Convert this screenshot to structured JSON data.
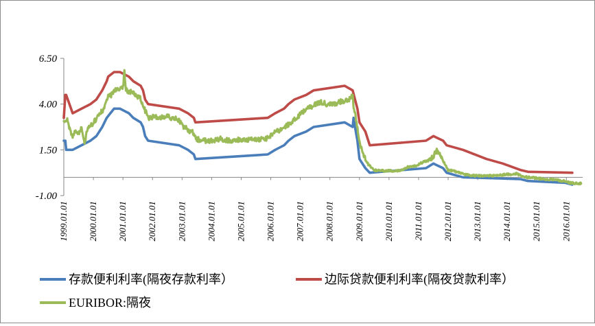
{
  "chart_data": {
    "type": "line",
    "title": "",
    "xlabel": "",
    "ylabel": "",
    "ylim": [
      -1.0,
      6.5
    ],
    "y_ticks": [
      "6.50",
      "4.00",
      "1.50",
      "-1.00"
    ],
    "x_ticks": [
      "1999.01.01",
      "2000.01.01",
      "2001.01.01",
      "2002.01.01",
      "2003.01.01",
      "2004.01.01",
      "2005.01.01",
      "2006.01.01",
      "2007.01.01",
      "2008.01.01",
      "2009.01.01",
      "2010.01.01",
      "2011.01.01",
      "2012.01.01",
      "2013.01.01",
      "2014.01.01",
      "2015.01.01",
      "2016.01.01"
    ],
    "grid": false,
    "legend_position": "bottom",
    "series": [
      {
        "name": "存款便利利率(隔夜存款利率）",
        "color": "#4a7ebb",
        "points": [
          [
            1999.0,
            2.0
          ],
          [
            1999.05,
            2.0
          ],
          [
            1999.08,
            1.5
          ],
          [
            1999.3,
            1.5
          ],
          [
            1999.9,
            2.0
          ],
          [
            2000.1,
            2.25
          ],
          [
            2000.2,
            2.5
          ],
          [
            2000.3,
            2.75
          ],
          [
            2000.45,
            3.25
          ],
          [
            2000.7,
            3.75
          ],
          [
            2000.9,
            3.75
          ],
          [
            2001.2,
            3.5
          ],
          [
            2001.35,
            3.25
          ],
          [
            2001.6,
            3.0
          ],
          [
            2001.68,
            2.75
          ],
          [
            2001.75,
            2.25
          ],
          [
            2001.85,
            2.0
          ],
          [
            2002.9,
            1.75
          ],
          [
            2003.2,
            1.5
          ],
          [
            2003.4,
            1.25
          ],
          [
            2003.45,
            1.0
          ],
          [
            2005.9,
            1.25
          ],
          [
            2006.15,
            1.5
          ],
          [
            2006.45,
            1.75
          ],
          [
            2006.6,
            2.0
          ],
          [
            2006.8,
            2.25
          ],
          [
            2007.2,
            2.5
          ],
          [
            2007.45,
            2.75
          ],
          [
            2008.5,
            3.0
          ],
          [
            2008.77,
            2.75
          ],
          [
            2008.8,
            3.25
          ],
          [
            2008.85,
            2.75
          ],
          [
            2008.93,
            2.0
          ],
          [
            2009.0,
            1.0
          ],
          [
            2009.2,
            0.5
          ],
          [
            2009.35,
            0.25
          ],
          [
            2011.25,
            0.5
          ],
          [
            2011.5,
            0.75
          ],
          [
            2011.83,
            0.5
          ],
          [
            2011.95,
            0.25
          ],
          [
            2012.5,
            0.0
          ],
          [
            2014.45,
            -0.1
          ],
          [
            2014.7,
            -0.2
          ],
          [
            2015.95,
            -0.3
          ],
          [
            2016.2,
            -0.4
          ]
        ]
      },
      {
        "name": "边际贷款便利利率(隔夜贷款利率）",
        "color": "#be4b48",
        "points": [
          [
            1999.0,
            3.25
          ],
          [
            1999.05,
            4.5
          ],
          [
            1999.08,
            4.5
          ],
          [
            1999.3,
            3.5
          ],
          [
            1999.9,
            4.0
          ],
          [
            2000.1,
            4.25
          ],
          [
            2000.2,
            4.5
          ],
          [
            2000.3,
            4.75
          ],
          [
            2000.45,
            5.25
          ],
          [
            2000.5,
            5.5
          ],
          [
            2000.7,
            5.75
          ],
          [
            2000.9,
            5.75
          ],
          [
            2001.2,
            5.5
          ],
          [
            2001.35,
            5.25
          ],
          [
            2001.6,
            5.0
          ],
          [
            2001.68,
            4.75
          ],
          [
            2001.75,
            4.25
          ],
          [
            2001.85,
            4.0
          ],
          [
            2002.9,
            3.75
          ],
          [
            2003.2,
            3.5
          ],
          [
            2003.4,
            3.25
          ],
          [
            2003.45,
            3.0
          ],
          [
            2005.9,
            3.25
          ],
          [
            2006.15,
            3.5
          ],
          [
            2006.45,
            3.75
          ],
          [
            2006.6,
            4.0
          ],
          [
            2006.8,
            4.25
          ],
          [
            2007.2,
            4.5
          ],
          [
            2007.45,
            4.75
          ],
          [
            2008.5,
            5.0
          ],
          [
            2008.77,
            4.75
          ],
          [
            2008.85,
            4.25
          ],
          [
            2008.93,
            3.75
          ],
          [
            2009.0,
            3.0
          ],
          [
            2009.2,
            2.5
          ],
          [
            2009.35,
            1.75
          ],
          [
            2011.25,
            2.0
          ],
          [
            2011.5,
            2.25
          ],
          [
            2011.83,
            2.0
          ],
          [
            2011.95,
            1.75
          ],
          [
            2012.5,
            1.5
          ],
          [
            2013.3,
            1.0
          ],
          [
            2013.85,
            0.75
          ],
          [
            2014.45,
            0.4
          ],
          [
            2014.7,
            0.3
          ],
          [
            2016.2,
            0.25
          ]
        ]
      },
      {
        "name": "EURIBOR:隔夜",
        "color": "#9bbb59",
        "points": [
          [
            1999.0,
            3.0
          ],
          [
            1999.1,
            3.2
          ],
          [
            1999.2,
            2.6
          ],
          [
            1999.3,
            2.2
          ],
          [
            1999.4,
            2.6
          ],
          [
            1999.5,
            2.3
          ],
          [
            1999.6,
            2.8
          ],
          [
            1999.7,
            1.7
          ],
          [
            1999.8,
            2.7
          ],
          [
            1999.9,
            2.8
          ],
          [
            2000.0,
            3.0
          ],
          [
            2000.1,
            3.2
          ],
          [
            2000.2,
            3.5
          ],
          [
            2000.3,
            3.6
          ],
          [
            2000.4,
            3.9
          ],
          [
            2000.5,
            4.4
          ],
          [
            2000.6,
            4.5
          ],
          [
            2000.7,
            4.7
          ],
          [
            2000.8,
            4.9
          ],
          [
            2000.9,
            4.8
          ],
          [
            2001.0,
            4.9
          ],
          [
            2001.05,
            5.8
          ],
          [
            2001.1,
            4.8
          ],
          [
            2001.2,
            4.6
          ],
          [
            2001.3,
            4.7
          ],
          [
            2001.4,
            4.5
          ],
          [
            2001.5,
            4.4
          ],
          [
            2001.6,
            4.3
          ],
          [
            2001.7,
            3.8
          ],
          [
            2001.8,
            3.5
          ],
          [
            2001.9,
            3.2
          ],
          [
            2002.0,
            3.3
          ],
          [
            2002.2,
            3.3
          ],
          [
            2002.5,
            3.3
          ],
          [
            2002.8,
            3.2
          ],
          [
            2002.9,
            3.1
          ],
          [
            2003.0,
            2.8
          ],
          [
            2003.2,
            2.6
          ],
          [
            2003.4,
            2.4
          ],
          [
            2003.5,
            2.1
          ],
          [
            2003.7,
            2.0
          ],
          [
            2004.0,
            2.0
          ],
          [
            2004.3,
            2.1
          ],
          [
            2004.6,
            2.0
          ],
          [
            2004.9,
            2.05
          ],
          [
            2005.2,
            2.05
          ],
          [
            2005.5,
            2.1
          ],
          [
            2005.8,
            2.05
          ],
          [
            2005.95,
            2.2
          ],
          [
            2006.1,
            2.4
          ],
          [
            2006.3,
            2.6
          ],
          [
            2006.5,
            2.8
          ],
          [
            2006.7,
            3.0
          ],
          [
            2006.9,
            3.3
          ],
          [
            2007.1,
            3.6
          ],
          [
            2007.3,
            3.8
          ],
          [
            2007.5,
            4.0
          ],
          [
            2007.7,
            4.1
          ],
          [
            2007.9,
            4.0
          ],
          [
            2008.1,
            4.0
          ],
          [
            2008.3,
            4.1
          ],
          [
            2008.5,
            4.2
          ],
          [
            2008.7,
            4.3
          ],
          [
            2008.77,
            4.6
          ],
          [
            2008.8,
            3.8
          ],
          [
            2008.85,
            3.5
          ],
          [
            2008.9,
            3.0
          ],
          [
            2009.0,
            2.0
          ],
          [
            2009.1,
            1.3
          ],
          [
            2009.3,
            0.7
          ],
          [
            2009.5,
            0.4
          ],
          [
            2009.7,
            0.35
          ],
          [
            2010.0,
            0.35
          ],
          [
            2010.3,
            0.35
          ],
          [
            2010.5,
            0.45
          ],
          [
            2010.7,
            0.6
          ],
          [
            2010.9,
            0.6
          ],
          [
            2011.1,
            0.8
          ],
          [
            2011.3,
            0.9
          ],
          [
            2011.5,
            1.1
          ],
          [
            2011.6,
            1.5
          ],
          [
            2011.7,
            1.3
          ],
          [
            2011.8,
            1.0
          ],
          [
            2011.9,
            0.7
          ],
          [
            2012.0,
            0.4
          ],
          [
            2012.3,
            0.3
          ],
          [
            2012.6,
            0.15
          ],
          [
            2012.8,
            0.1
          ],
          [
            2013.0,
            0.08
          ],
          [
            2013.4,
            0.08
          ],
          [
            2013.8,
            0.12
          ],
          [
            2014.0,
            0.15
          ],
          [
            2014.3,
            0.2
          ],
          [
            2014.5,
            0.05
          ],
          [
            2014.7,
            0.0
          ],
          [
            2015.0,
            -0.05
          ],
          [
            2015.3,
            -0.1
          ],
          [
            2015.6,
            -0.13
          ],
          [
            2015.9,
            -0.2
          ],
          [
            2016.1,
            -0.3
          ],
          [
            2016.3,
            -0.33
          ],
          [
            2016.5,
            -0.34
          ]
        ]
      }
    ]
  }
}
